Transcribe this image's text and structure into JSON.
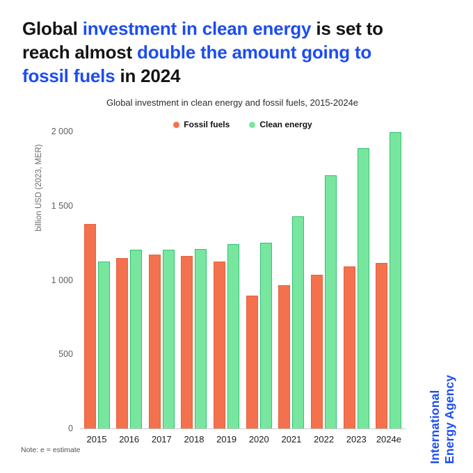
{
  "colors": {
    "title_dark": "#141414",
    "title_blue": "#1d4df0",
    "brand_blue": "#1d4df0",
    "baseline": "#c9c9c9"
  },
  "title": {
    "lines": [
      [
        {
          "t": "Global ",
          "c": "dark"
        },
        {
          "t": "investment in clean energy",
          "c": "blue"
        },
        {
          "t": " is set to",
          "c": "dark"
        }
      ],
      [
        {
          "t": "reach almost ",
          "c": "dark"
        },
        {
          "t": "double the amount going to",
          "c": "blue"
        }
      ],
      [
        {
          "t": "fossil fuels",
          "c": "blue"
        },
        {
          "t": " in 2024",
          "c": "dark"
        }
      ]
    ]
  },
  "note": "Note: e = estimate",
  "branding": {
    "line1": "International",
    "line2": "Energy Agency"
  },
  "chart_data": {
    "type": "bar",
    "title": "Global investment in clean energy and fossil fuels, 2015-2024e",
    "categories": [
      "2015",
      "2016",
      "2017",
      "2018",
      "2019",
      "2020",
      "2021",
      "2022",
      "2023",
      "2024e"
    ],
    "series": [
      {
        "name": "Fossil fuels",
        "fill": "#f4714e",
        "border": "#e8603e",
        "values": [
          1380,
          1150,
          1175,
          1165,
          1130,
          900,
          970,
          1040,
          1095,
          1120
        ]
      },
      {
        "name": "Clean energy",
        "fill": "#79e69f",
        "border": "#2ec273",
        "values": [
          1130,
          1210,
          1210,
          1215,
          1245,
          1255,
          1435,
          1710,
          1890,
          2000
        ]
      }
    ],
    "xlabel": "",
    "ylabel": "billion USD (2023, MER)",
    "ylim": [
      0,
      2000
    ],
    "yticks": [
      0,
      500,
      1000,
      1500,
      2000
    ],
    "ytick_labels": [
      "0",
      "500",
      "1 000",
      "1 500",
      "2 000"
    ],
    "legend_position": "top",
    "grid": false
  }
}
